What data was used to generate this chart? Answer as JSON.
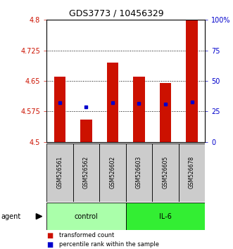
{
  "title": "GDS3773 / 10456329",
  "samples": [
    "GSM526561",
    "GSM526562",
    "GSM526602",
    "GSM526603",
    "GSM526605",
    "GSM526678"
  ],
  "bar_tops": [
    4.66,
    4.555,
    4.695,
    4.66,
    4.645,
    4.8
  ],
  "bar_base": 4.5,
  "percentile_y": [
    4.596,
    4.586,
    4.596,
    4.594,
    4.593,
    4.598
  ],
  "groups": [
    {
      "label": "control",
      "indices": [
        0,
        1,
        2
      ],
      "color": "#aaffaa"
    },
    {
      "label": "IL-6",
      "indices": [
        3,
        4,
        5
      ],
      "color": "#33ee33"
    }
  ],
  "ylim": [
    4.5,
    4.8
  ],
  "y_ticks_left": [
    4.5,
    4.575,
    4.65,
    4.725,
    4.8
  ],
  "y_ticks_right_pct": [
    0,
    25,
    50,
    75,
    100
  ],
  "grid_lines": [
    4.575,
    4.65,
    4.725
  ],
  "bar_color": "#cc1100",
  "blue_color": "#0000cc",
  "sample_box_color": "#cccccc",
  "legend": [
    "transformed count",
    "percentile rank within the sample"
  ],
  "title_fontsize": 9,
  "tick_fontsize": 7,
  "sample_fontsize": 5.5,
  "group_fontsize": 7,
  "legend_fontsize": 6,
  "agent_fontsize": 7
}
